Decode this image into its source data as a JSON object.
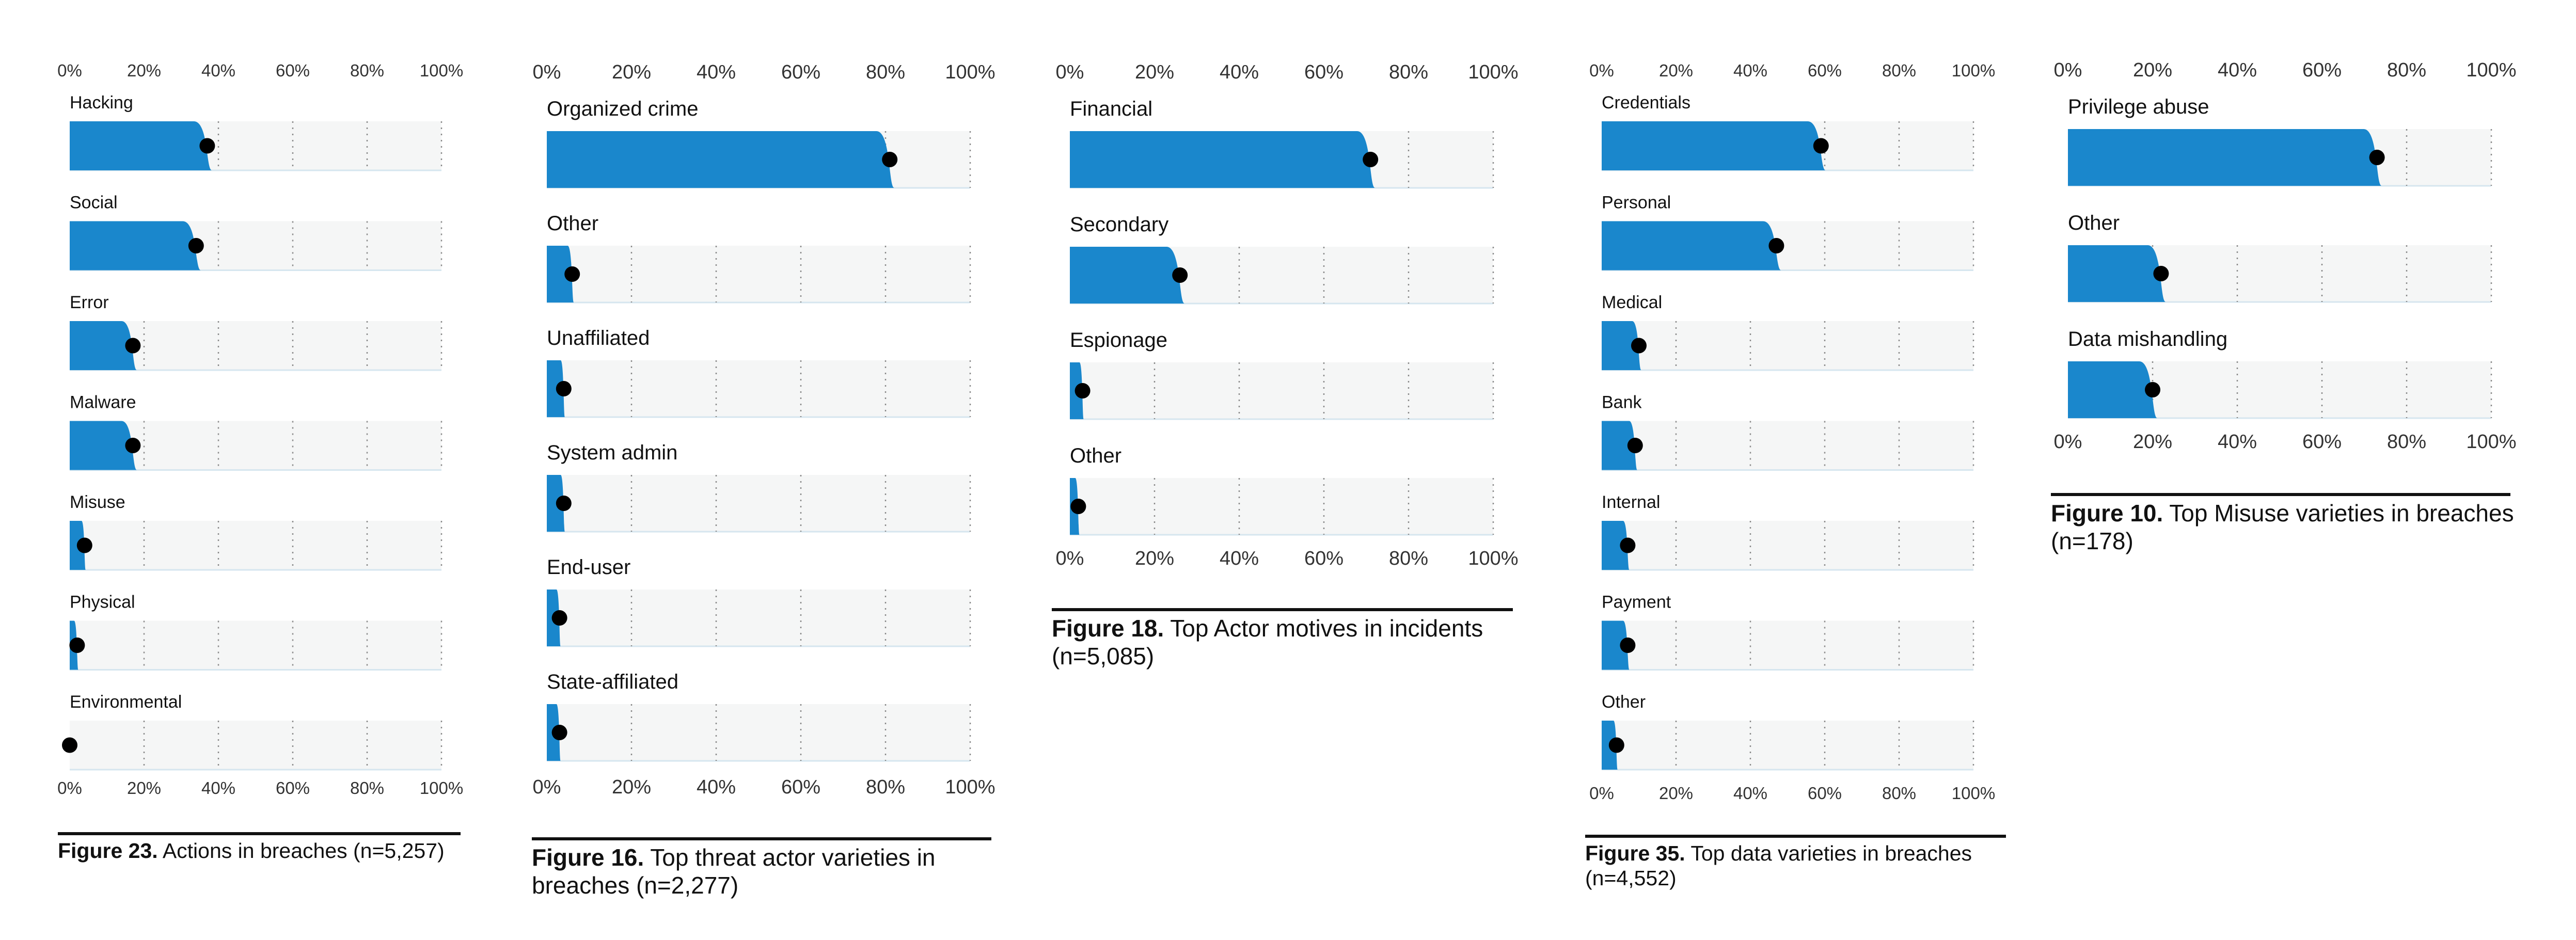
{
  "colors": {
    "bar": "#1a87cc",
    "track": "#f5f6f6",
    "track_edge": "#d6e6ef",
    "dot": "#000000",
    "grid": "#8a8a8a",
    "rule": "#111111"
  },
  "chart_data": [
    {
      "type": "bar",
      "subtype": "horizontal-slanted-bar-with-dot",
      "figure": "Figure 23.",
      "caption": "Actions in breaches (n=5,257)",
      "xlim": [
        0,
        100
      ],
      "xticks": [
        "0%",
        "20%",
        "40%",
        "60%",
        "80%",
        "100%"
      ],
      "categories": [
        "Hacking",
        "Social",
        "Error",
        "Malware",
        "Misuse",
        "Physical",
        "Environmental"
      ],
      "values": [
        37,
        34,
        17,
        17,
        4,
        2,
        0
      ],
      "grid": true,
      "bottom_axis": true
    },
    {
      "type": "bar",
      "subtype": "horizontal-slanted-bar-with-dot",
      "figure": "Figure 16.",
      "caption": "Top threat actor varieties in breaches (n=2,277)",
      "xlim": [
        0,
        100
      ],
      "xticks": [
        "0%",
        "20%",
        "40%",
        "60%",
        "80%",
        "100%"
      ],
      "categories": [
        "Organized crime",
        "Other",
        "Unaffiliated",
        "System admin",
        "End-user",
        "State-affiliated"
      ],
      "values": [
        81,
        6,
        4,
        4,
        3,
        3
      ],
      "grid": true,
      "bottom_axis": true
    },
    {
      "type": "bar",
      "subtype": "horizontal-slanted-bar-with-dot",
      "figure": "Figure 18.",
      "caption": "Top Actor motives in incidents (n=5,085)",
      "xlim": [
        0,
        100
      ],
      "xticks": [
        "0%",
        "20%",
        "40%",
        "60%",
        "80%",
        "100%"
      ],
      "categories": [
        "Financial",
        "Secondary",
        "Espionage",
        "Other"
      ],
      "values": [
        71,
        26,
        3,
        2
      ],
      "grid": true,
      "bottom_axis": true
    },
    {
      "type": "bar",
      "subtype": "horizontal-slanted-bar-with-dot",
      "figure": "Figure 35.",
      "caption": "Top data varieties in breaches (n=4,552)",
      "xlim": [
        0,
        100
      ],
      "xticks": [
        "0%",
        "20%",
        "40%",
        "60%",
        "80%",
        "100%"
      ],
      "categories": [
        "Credentials",
        "Personal",
        "Medical",
        "Bank",
        "Internal",
        "Payment",
        "Other"
      ],
      "values": [
        59,
        47,
        10,
        9,
        7,
        7,
        4
      ],
      "grid": true,
      "bottom_axis": true
    },
    {
      "type": "bar",
      "subtype": "horizontal-slanted-bar-with-dot",
      "figure": "Figure 10.",
      "caption": "Top Misuse varieties in breaches (n=178)",
      "xlim": [
        0,
        100
      ],
      "xticks": [
        "0%",
        "20%",
        "40%",
        "60%",
        "80%",
        "100%"
      ],
      "categories": [
        "Privilege abuse",
        "Other",
        "Data mishandling"
      ],
      "values": [
        73,
        22,
        20
      ],
      "grid": true,
      "bottom_axis": true
    }
  ]
}
